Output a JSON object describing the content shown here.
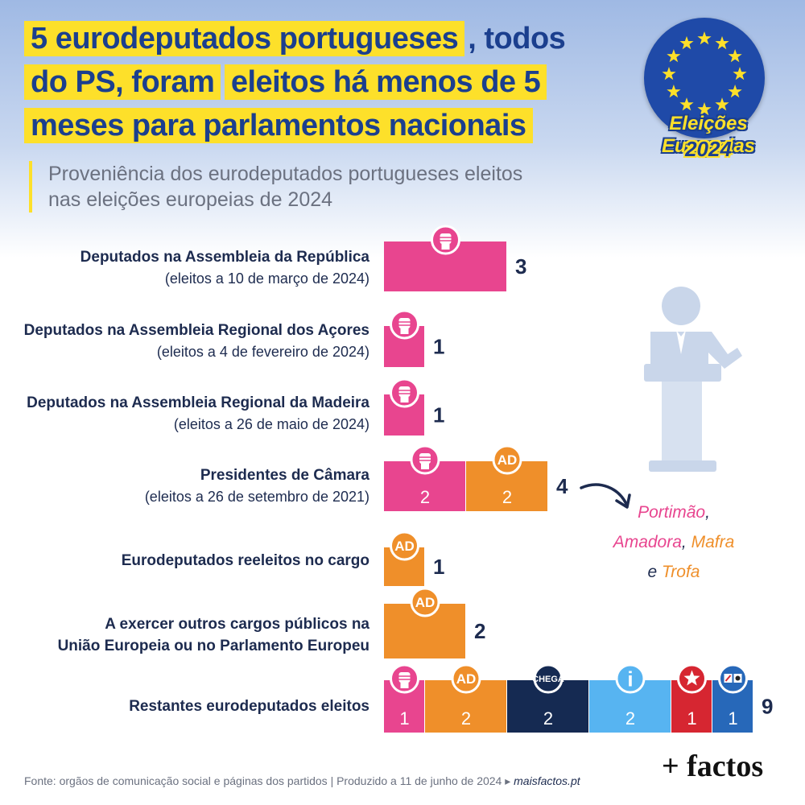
{
  "title": {
    "line1": "5 eurodeputados portugueses",
    "line1_rest": ", todos",
    "line2_a": "do PS, foram",
    "line2_b": "eleitos há menos de 5",
    "line3": "meses para parlamentos nacionais"
  },
  "subtitle": {
    "line1": "Proveniência dos eurodeputados portugueses eleitos",
    "line2": "nas eleições europeias de 2024"
  },
  "badge": {
    "line1": "Eleições Europeias",
    "line2": "2024"
  },
  "colors": {
    "PS": "#e8458f",
    "AD": "#ef8f2a",
    "CHEGA": "#152a52",
    "IL": "#57b4f1",
    "BE": "#d62631",
    "CDU": "#2768b9"
  },
  "chart_data": {
    "type": "bar",
    "orientation": "horizontal",
    "stacked": true,
    "rows": [
      {
        "label": "Deputados na Assembleia da República",
        "sublabel": "(eleitos a 10 de março de 2024)",
        "total": "3",
        "segments": [
          {
            "party": "PS",
            "value": 3,
            "icon": "ps-fist-icon",
            "show_value": false
          }
        ]
      },
      {
        "label": "Deputados na Assembleia Regional dos Açores",
        "sublabel": "(eleitos a 4 de fevereiro de 2024)",
        "total": "1",
        "segments": [
          {
            "party": "PS",
            "value": 1,
            "icon": "ps-fist-icon",
            "show_value": false
          }
        ]
      },
      {
        "label": "Deputados na Assembleia Regional da Madeira",
        "sublabel": "(eleitos a 26 de maio de 2024)",
        "total": "1",
        "segments": [
          {
            "party": "PS",
            "value": 1,
            "icon": "ps-fist-icon",
            "show_value": false
          }
        ]
      },
      {
        "label": "Presidentes de Câmara",
        "sublabel": "(eleitos a 26 de setembro de 2021)",
        "total": "4",
        "segments": [
          {
            "party": "PS",
            "value": 2,
            "icon": "ps-fist-icon",
            "show_value": true
          },
          {
            "party": "AD",
            "value": 2,
            "icon": "ad-logo-icon",
            "icon_text": "AD",
            "show_value": true
          }
        ]
      },
      {
        "label": "Eurodeputados reeleitos no cargo",
        "sublabel": "",
        "total": "1",
        "segments": [
          {
            "party": "AD",
            "value": 1,
            "icon": "ad-logo-icon",
            "icon_text": "AD",
            "show_value": false
          }
        ]
      },
      {
        "label": "A exercer outros cargos públicos na",
        "label2": "União Europeia ou no Parlamento Europeu",
        "sublabel": "",
        "total": "2",
        "segments": [
          {
            "party": "AD",
            "value": 2,
            "icon": "ad-logo-icon",
            "icon_text": "AD",
            "show_value": false
          }
        ]
      },
      {
        "label": "Restantes eurodeputados eleitos",
        "sublabel": "",
        "total": "9",
        "segments": [
          {
            "party": "PS",
            "value": 1,
            "icon": "ps-fist-icon",
            "show_value": true
          },
          {
            "party": "AD",
            "value": 2,
            "icon": "ad-logo-icon",
            "icon_text": "AD",
            "show_value": true
          },
          {
            "party": "CHEGA",
            "value": 2,
            "icon": "chega-logo-icon",
            "icon_text": "CHEGA",
            "show_value": true
          },
          {
            "party": "IL",
            "value": 2,
            "icon": "il-logo-icon",
            "icon_text": "i",
            "show_value": true
          },
          {
            "party": "BE",
            "value": 1,
            "icon": "be-star-icon",
            "show_value": true
          },
          {
            "party": "CDU",
            "value": 1,
            "icon": "cdu-logo-icon",
            "show_value": true
          }
        ]
      }
    ]
  },
  "note": {
    "c1": "Portimão",
    "c2": "Amadora",
    "c3": "Mafra",
    "c4": "Trofa",
    "sep_comma": ",",
    "sep_e": "e"
  },
  "footer": {
    "text": "Fonte: orgãos de comunicação social e páginas dos partidos | Produzido a 11 de junho de 2024 ▸",
    "site": "maisfactos.pt"
  },
  "brand": "+ factos"
}
